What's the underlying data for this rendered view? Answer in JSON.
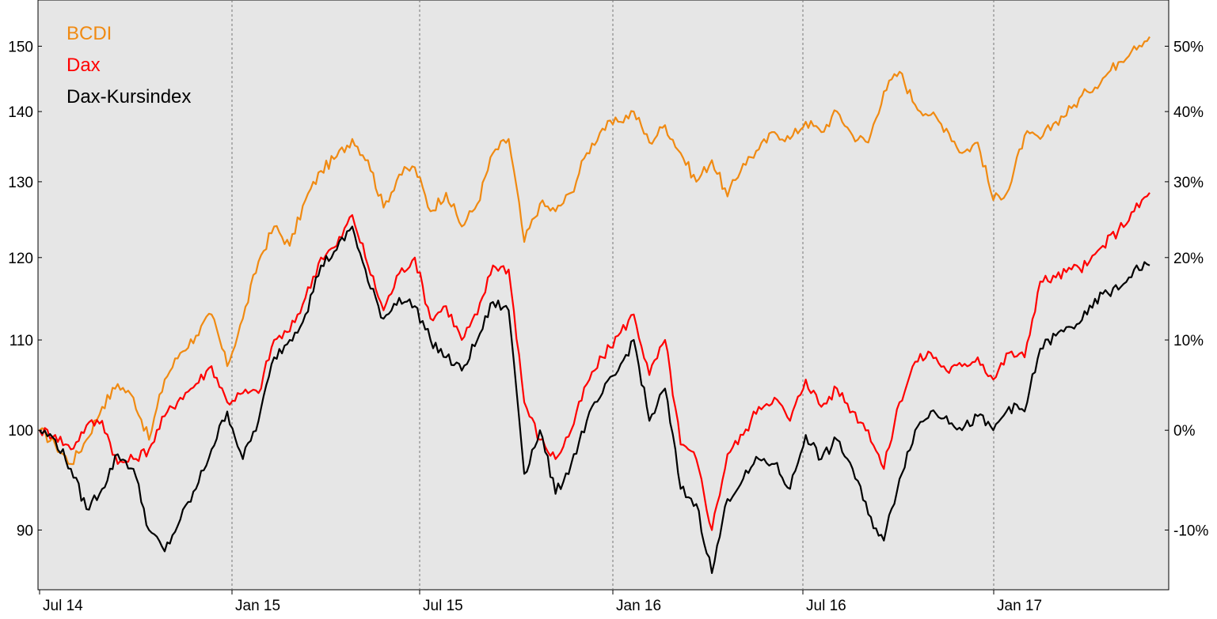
{
  "chart_data": {
    "type": "line",
    "title": "",
    "xlabel": "",
    "ylabel": "",
    "y_scale": "log",
    "ylim": [
      84.5,
      157.5
    ],
    "y_ticks_left": [
      "90",
      "100",
      "110",
      "120",
      "130",
      "140",
      "150"
    ],
    "y_ticks_right": [
      "-10%",
      "0%",
      "10%",
      "20%",
      "30%",
      "40%",
      "50%"
    ],
    "x_ticks": [
      "Jul 14",
      "Jan 15",
      "Jul 15",
      "Jan 16",
      "Jul 16",
      "Jan 17"
    ],
    "grid": "vertical dashed at x ticks",
    "legend_position": "top-left",
    "background": "#e6e6e6",
    "series": [
      {
        "name": "BCDI",
        "color": "#f08a12",
        "values": [
          100,
          98.5,
          96.5,
          99.0,
          102.5,
          105.0,
          103.5,
          99.0,
          105.5,
          108.5,
          110.5,
          113.0,
          107.0,
          112.5,
          119.5,
          124.0,
          121.5,
          127.5,
          131.5,
          133.5,
          136.0,
          133.0,
          126.5,
          131.0,
          132.0,
          126.0,
          128.5,
          124.0,
          127.0,
          134.0,
          136.0,
          122.0,
          127.0,
          126.0,
          128.5,
          134.0,
          137.5,
          138.5,
          140.0,
          135.5,
          138.0,
          134.0,
          130.0,
          133.0,
          128.0,
          132.5,
          134.5,
          137.0,
          136.0,
          138.5,
          137.0,
          140.0,
          136.5,
          135.5,
          143.0,
          146.0,
          141.0,
          139.5,
          137.5,
          134.0,
          135.5,
          127.5,
          129.0,
          136.5,
          136.0,
          138.5,
          140.5,
          143.0,
          145.0,
          147.5,
          150.0,
          151.5
        ]
      },
      {
        "name": "Dax",
        "color": "#ff0000",
        "values": [
          100,
          99.5,
          98.0,
          100.5,
          101.0,
          96.5,
          97.0,
          98.0,
          101.5,
          103.5,
          105.0,
          107.0,
          103.0,
          104.0,
          104.0,
          110.0,
          111.0,
          115.0,
          120.0,
          121.5,
          125.5,
          119.0,
          113.5,
          118.0,
          120.0,
          112.5,
          114.0,
          110.0,
          113.0,
          119.0,
          118.5,
          103.0,
          99.0,
          97.0,
          100.0,
          105.0,
          108.0,
          110.5,
          113.0,
          106.0,
          110.0,
          98.5,
          97.0,
          90.0,
          97.5,
          99.5,
          102.5,
          103.5,
          101.0,
          105.5,
          102.5,
          104.5,
          102.0,
          100.0,
          96.0,
          103.0,
          107.5,
          108.5,
          106.5,
          107.0,
          108.0,
          105.5,
          108.5,
          108.0,
          117.0,
          117.5,
          118.5,
          119.0,
          121.5,
          123.5,
          126.0,
          128.5
        ]
      },
      {
        "name": "Dax-Kursindex",
        "color": "#000000",
        "values": [
          100,
          99.0,
          96.0,
          92.0,
          94.0,
          97.5,
          96.0,
          90.0,
          88.0,
          91.0,
          94.0,
          98.0,
          102.0,
          97.0,
          101.0,
          108.0,
          110.0,
          113.0,
          119.0,
          121.0,
          124.0,
          117.0,
          112.5,
          115.0,
          114.0,
          110.0,
          108.0,
          106.5,
          110.0,
          114.5,
          113.5,
          95.5,
          100.0,
          93.5,
          96.5,
          101.0,
          104.0,
          106.5,
          110.0,
          101.0,
          104.5,
          94.0,
          92.5,
          86.0,
          93.0,
          95.0,
          97.0,
          96.5,
          94.0,
          99.5,
          97.0,
          99.0,
          96.0,
          91.5,
          89.0,
          95.0,
          100.0,
          102.0,
          101.5,
          100.0,
          101.5,
          100.0,
          102.5,
          102.0,
          109.0,
          110.5,
          111.5,
          113.0,
          115.5,
          116.0,
          118.5,
          119.0
        ]
      }
    ]
  }
}
